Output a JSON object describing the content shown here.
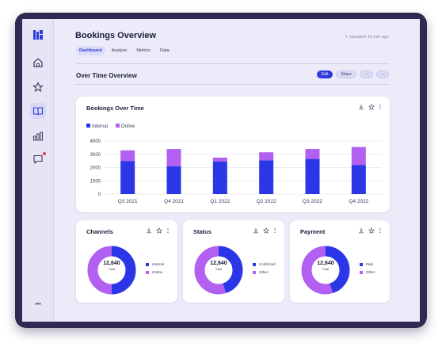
{
  "header": {
    "title": "Bookings Overview",
    "updated": "Updated 15 min ago",
    "tabs": [
      "Dashboard",
      "Analyze",
      "Metrics",
      "Data"
    ],
    "active_tab": "Dashboard"
  },
  "section": {
    "title": "Over Time Overview",
    "actions": {
      "edit": "Edit",
      "share": "Share",
      "more1": "···",
      "more2": "..."
    }
  },
  "sidebar": {
    "icons": [
      "logo-icon",
      "home-icon",
      "star-icon",
      "book-icon",
      "bar-chart-icon",
      "chat-icon",
      "more-icon"
    ],
    "more_label": "•••"
  },
  "colors": {
    "internal": "#2b37e6",
    "online": "#b160f2",
    "accent": "#2d3bd9"
  },
  "bookings_card": {
    "title": "Bookings Over Time",
    "legend": [
      "Internal",
      "Online"
    ]
  },
  "chart_data": {
    "type": "bar",
    "stacked": true,
    "title": "Bookings Over Time",
    "categories": [
      "Q3 2021",
      "Q4 2021",
      "Q1 2022",
      "Q2 2022",
      "Q3 2022",
      "Q4 2022"
    ],
    "series": [
      {
        "name": "Internal",
        "values": [
          2500,
          2100,
          2450,
          2550,
          2650,
          2200
        ]
      },
      {
        "name": "Online",
        "values": [
          800,
          1300,
          300,
          600,
          750,
          1350
        ]
      }
    ],
    "ylim": [
      0,
      4000
    ],
    "yticks": [
      "0",
      "1000",
      "2000",
      "3000",
      "4000"
    ],
    "grid": true,
    "legend_position": "top-left"
  },
  "donuts": [
    {
      "title": "Channels",
      "value": "12,640",
      "label": "Total",
      "legend": [
        "Internal",
        "Online"
      ],
      "share_primary": 0.5
    },
    {
      "title": "Status",
      "value": "12,640",
      "label": "Total",
      "legend": [
        "Confirmed",
        "Other"
      ],
      "share_primary": 0.45
    },
    {
      "title": "Payment",
      "value": "12,640",
      "label": "Total",
      "legend": [
        "Paid",
        "Other"
      ],
      "share_primary": 0.45
    }
  ]
}
